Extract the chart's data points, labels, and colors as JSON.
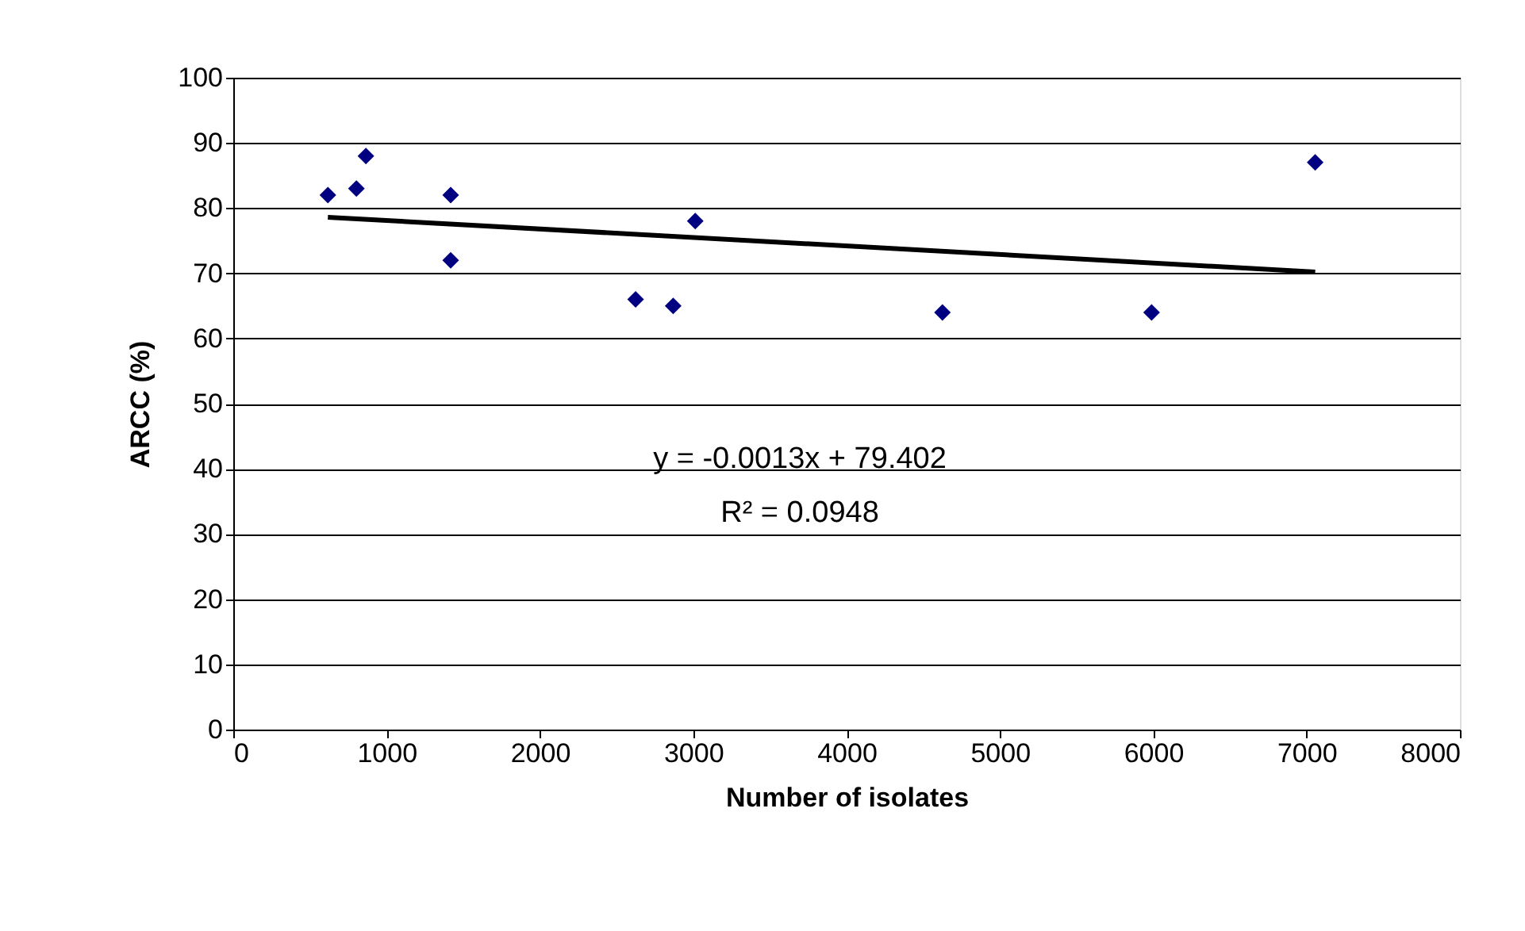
{
  "chart_data": {
    "type": "scatter",
    "xlabel": "Number of isolates",
    "ylabel": "ARCC (%)",
    "series": [
      {
        "color": "#000080",
        "x": [
          617,
          803,
          865,
          1418,
          1418,
          2624,
          2869,
          3013,
          4625,
          5989,
          7056
        ],
        "values": [
          82,
          83,
          88,
          82,
          72,
          66,
          65,
          78,
          64,
          64,
          87
        ]
      },
      {
        "type": "line",
        "marker": "none",
        "color": "#000000",
        "x": [
          617,
          7056
        ],
        "values": [
          78.6,
          70.2
        ]
      }
    ],
    "marker": "diamond",
    "xlim": [
      0,
      8000
    ],
    "xticks": [
      0,
      1000,
      2000,
      3000,
      4000,
      5000,
      6000,
      7000,
      8000
    ],
    "ylim": [
      0,
      100
    ],
    "yticks": [
      0,
      10,
      20,
      30,
      40,
      50,
      60,
      70,
      80,
      90,
      100
    ],
    "grid": "y",
    "annotations": [
      "y = -0.0013x + 79.402",
      "R² = 0.0948"
    ]
  }
}
